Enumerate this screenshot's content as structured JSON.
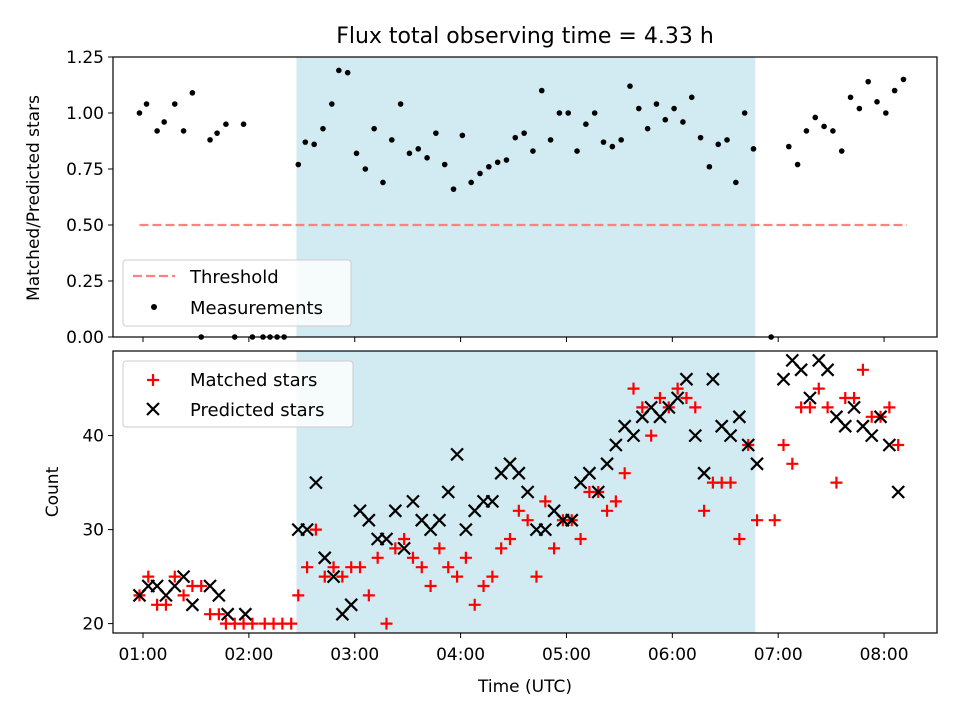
{
  "chart_data": [
    {
      "type": "scatter",
      "title": "Flux total observing time = 4.33 h",
      "xlabel": "",
      "ylabel": "Matched/Predicted stars",
      "ylim": [
        0,
        1.25
      ],
      "yticks": [
        "0.00",
        "0.25",
        "0.50",
        "0.75",
        "1.00",
        "1.25"
      ],
      "xlim": [
        "00:43",
        "08:30"
      ],
      "shaded_interval": [
        "02:27",
        "06:47"
      ],
      "shade_color": "#add8e6",
      "threshold": {
        "name": "Threshold",
        "value": 0.5,
        "x_range": [
          "00:58",
          "08:13"
        ],
        "color": "#ff8080"
      },
      "legend": {
        "position": "lower-left",
        "entries": [
          "Threshold",
          "Measurements"
        ]
      },
      "series": [
        {
          "name": "Measurements",
          "color": "#000000",
          "marker": "dot",
          "points": [
            [
              "00:58",
              1.0
            ],
            [
              "01:02",
              1.04
            ],
            [
              "01:08",
              0.92
            ],
            [
              "01:12",
              0.96
            ],
            [
              "01:18",
              1.04
            ],
            [
              "01:23",
              0.92
            ],
            [
              "01:28",
              1.09
            ],
            [
              "01:33",
              0.0
            ],
            [
              "01:38",
              0.88
            ],
            [
              "01:42",
              0.91
            ],
            [
              "01:47",
              0.95
            ],
            [
              "01:52",
              0.0
            ],
            [
              "01:57",
              0.95
            ],
            [
              "02:02",
              0.0
            ],
            [
              "02:08",
              0.0
            ],
            [
              "02:12",
              0.0
            ],
            [
              "02:16",
              0.0
            ],
            [
              "02:20",
              0.0
            ],
            [
              "02:28",
              0.77
            ],
            [
              "02:32",
              0.87
            ],
            [
              "02:37",
              0.86
            ],
            [
              "02:42",
              0.93
            ],
            [
              "02:47",
              1.04
            ],
            [
              "02:51",
              1.19
            ],
            [
              "02:56",
              1.18
            ],
            [
              "03:01",
              0.82
            ],
            [
              "03:06",
              0.75
            ],
            [
              "03:11",
              0.93
            ],
            [
              "03:16",
              0.69
            ],
            [
              "03:21",
              0.88
            ],
            [
              "03:26",
              1.04
            ],
            [
              "03:31",
              0.82
            ],
            [
              "03:36",
              0.84
            ],
            [
              "03:41",
              0.8
            ],
            [
              "03:46",
              0.91
            ],
            [
              "03:51",
              0.77
            ],
            [
              "03:56",
              0.66
            ],
            [
              "04:01",
              0.9
            ],
            [
              "04:06",
              0.69
            ],
            [
              "04:11",
              0.73
            ],
            [
              "04:16",
              0.76
            ],
            [
              "04:21",
              0.78
            ],
            [
              "04:26",
              0.79
            ],
            [
              "04:31",
              0.89
            ],
            [
              "04:36",
              0.91
            ],
            [
              "04:41",
              0.83
            ],
            [
              "04:46",
              1.1
            ],
            [
              "04:51",
              0.88
            ],
            [
              "04:56",
              1.0
            ],
            [
              "05:01",
              1.0
            ],
            [
              "05:06",
              0.83
            ],
            [
              "05:11",
              0.95
            ],
            [
              "05:16",
              1.0
            ],
            [
              "05:21",
              0.87
            ],
            [
              "05:26",
              0.85
            ],
            [
              "05:31",
              0.88
            ],
            [
              "05:36",
              1.12
            ],
            [
              "05:41",
              1.02
            ],
            [
              "05:46",
              0.93
            ],
            [
              "05:51",
              1.04
            ],
            [
              "05:56",
              0.97
            ],
            [
              "06:01",
              1.02
            ],
            [
              "06:06",
              0.96
            ],
            [
              "06:11",
              1.07
            ],
            [
              "06:16",
              0.89
            ],
            [
              "06:21",
              0.76
            ],
            [
              "06:26",
              0.86
            ],
            [
              "06:31",
              0.88
            ],
            [
              "06:36",
              0.69
            ],
            [
              "06:41",
              1.0
            ],
            [
              "06:46",
              0.84
            ],
            [
              "06:56",
              0.0
            ],
            [
              "07:06",
              0.85
            ],
            [
              "07:11",
              0.77
            ],
            [
              "07:16",
              0.92
            ],
            [
              "07:21",
              0.98
            ],
            [
              "07:26",
              0.94
            ],
            [
              "07:31",
              0.92
            ],
            [
              "07:36",
              0.83
            ],
            [
              "07:41",
              1.07
            ],
            [
              "07:46",
              1.02
            ],
            [
              "07:51",
              1.14
            ],
            [
              "07:56",
              1.05
            ],
            [
              "08:01",
              1.0
            ],
            [
              "08:06",
              1.1
            ],
            [
              "08:11",
              1.15
            ]
          ]
        }
      ]
    },
    {
      "type": "scatter",
      "title": "",
      "xlabel": "Time (UTC)",
      "ylabel": "Count",
      "ylim": [
        19,
        49
      ],
      "yticks": [
        "20",
        "30",
        "40"
      ],
      "xticks": [
        "01:00",
        "02:00",
        "03:00",
        "04:00",
        "05:00",
        "06:00",
        "07:00",
        "08:00"
      ],
      "xlim": [
        "00:43",
        "08:30"
      ],
      "shaded_interval": [
        "02:27",
        "06:47"
      ],
      "shade_color": "#add8e6",
      "legend": {
        "position": "upper-left",
        "entries": [
          "Matched stars",
          "Predicted stars"
        ]
      },
      "series": [
        {
          "name": "Matched stars",
          "color": "#ff0000",
          "marker": "plus",
          "points": [
            [
              "00:58",
              23
            ],
            [
              "01:03",
              25
            ],
            [
              "01:08",
              22
            ],
            [
              "01:13",
              22
            ],
            [
              "01:18",
              25
            ],
            [
              "01:23",
              23
            ],
            [
              "01:28",
              24
            ],
            [
              "01:33",
              24
            ],
            [
              "01:38",
              21
            ],
            [
              "01:43",
              21
            ],
            [
              "01:47",
              20
            ],
            [
              "01:52",
              20
            ],
            [
              "01:57",
              20
            ],
            [
              "02:02",
              20
            ],
            [
              "02:09",
              20
            ],
            [
              "02:14",
              20
            ],
            [
              "02:19",
              20
            ],
            [
              "02:24",
              20
            ],
            [
              "02:28",
              23
            ],
            [
              "02:33",
              26
            ],
            [
              "02:38",
              30
            ],
            [
              "02:43",
              25
            ],
            [
              "02:48",
              26
            ],
            [
              "02:53",
              25
            ],
            [
              "02:58",
              26
            ],
            [
              "03:03",
              26
            ],
            [
              "03:08",
              23
            ],
            [
              "03:13",
              27
            ],
            [
              "03:18",
              20
            ],
            [
              "03:23",
              28
            ],
            [
              "03:28",
              29
            ],
            [
              "03:33",
              27
            ],
            [
              "03:38",
              26
            ],
            [
              "03:43",
              24
            ],
            [
              "03:48",
              28
            ],
            [
              "03:53",
              26
            ],
            [
              "03:58",
              25
            ],
            [
              "04:03",
              27
            ],
            [
              "04:08",
              22
            ],
            [
              "04:13",
              24
            ],
            [
              "04:18",
              25
            ],
            [
              "04:23",
              28
            ],
            [
              "04:28",
              29
            ],
            [
              "04:33",
              32
            ],
            [
              "04:38",
              31
            ],
            [
              "04:43",
              25
            ],
            [
              "04:48",
              33
            ],
            [
              "04:53",
              28
            ],
            [
              "04:58",
              31
            ],
            [
              "05:03",
              31
            ],
            [
              "05:08",
              29
            ],
            [
              "05:13",
              34
            ],
            [
              "05:18",
              34
            ],
            [
              "05:23",
              32
            ],
            [
              "05:28",
              33
            ],
            [
              "05:33",
              36
            ],
            [
              "05:38",
              45
            ],
            [
              "05:43",
              43
            ],
            [
              "05:48",
              40
            ],
            [
              "05:53",
              44
            ],
            [
              "05:58",
              43
            ],
            [
              "06:03",
              45
            ],
            [
              "06:08",
              44
            ],
            [
              "06:13",
              43
            ],
            [
              "06:18",
              32
            ],
            [
              "06:23",
              35
            ],
            [
              "06:28",
              35
            ],
            [
              "06:33",
              35
            ],
            [
              "06:38",
              29
            ],
            [
              "06:43",
              39
            ],
            [
              "06:48",
              31
            ],
            [
              "06:58",
              31
            ],
            [
              "07:03",
              39
            ],
            [
              "07:08",
              37
            ],
            [
              "07:13",
              43
            ],
            [
              "07:18",
              43
            ],
            [
              "07:23",
              45
            ],
            [
              "07:28",
              43
            ],
            [
              "07:33",
              35
            ],
            [
              "07:38",
              44
            ],
            [
              "07:43",
              44
            ],
            [
              "07:48",
              47
            ],
            [
              "07:53",
              42
            ],
            [
              "07:58",
              42
            ],
            [
              "08:03",
              43
            ],
            [
              "08:08",
              39
            ]
          ]
        },
        {
          "name": "Predicted stars",
          "color": "#000000",
          "marker": "x",
          "points": [
            [
              "00:58",
              23
            ],
            [
              "01:03",
              24
            ],
            [
              "01:08",
              24
            ],
            [
              "01:13",
              23
            ],
            [
              "01:18",
              24
            ],
            [
              "01:23",
              25
            ],
            [
              "01:28",
              22
            ],
            [
              "01:38",
              24
            ],
            [
              "01:43",
              23
            ],
            [
              "01:48",
              21
            ],
            [
              "01:58",
              21
            ],
            [
              "02:28",
              30
            ],
            [
              "02:33",
              30
            ],
            [
              "02:38",
              35
            ],
            [
              "02:43",
              27
            ],
            [
              "02:48",
              25
            ],
            [
              "02:53",
              21
            ],
            [
              "02:58",
              22
            ],
            [
              "03:03",
              32
            ],
            [
              "03:08",
              31
            ],
            [
              "03:13",
              29
            ],
            [
              "03:18",
              29
            ],
            [
              "03:23",
              32
            ],
            [
              "03:28",
              28
            ],
            [
              "03:33",
              33
            ],
            [
              "03:38",
              31
            ],
            [
              "03:43",
              30
            ],
            [
              "03:48",
              31
            ],
            [
              "03:53",
              34
            ],
            [
              "03:58",
              38
            ],
            [
              "04:03",
              30
            ],
            [
              "04:08",
              32
            ],
            [
              "04:13",
              33
            ],
            [
              "04:18",
              33
            ],
            [
              "04:23",
              36
            ],
            [
              "04:28",
              37
            ],
            [
              "04:33",
              36
            ],
            [
              "04:38",
              34
            ],
            [
              "04:43",
              30
            ],
            [
              "04:48",
              30
            ],
            [
              "04:53",
              32
            ],
            [
              "04:58",
              31
            ],
            [
              "05:03",
              31
            ],
            [
              "05:08",
              35
            ],
            [
              "05:13",
              36
            ],
            [
              "05:18",
              34
            ],
            [
              "05:23",
              37
            ],
            [
              "05:28",
              39
            ],
            [
              "05:33",
              41
            ],
            [
              "05:38",
              40
            ],
            [
              "05:43",
              42
            ],
            [
              "05:48",
              43
            ],
            [
              "05:53",
              42
            ],
            [
              "05:58",
              43
            ],
            [
              "06:03",
              44
            ],
            [
              "06:08",
              46
            ],
            [
              "06:13",
              40
            ],
            [
              "06:18",
              36
            ],
            [
              "06:23",
              46
            ],
            [
              "06:28",
              41
            ],
            [
              "06:33",
              40
            ],
            [
              "06:38",
              42
            ],
            [
              "06:43",
              39
            ],
            [
              "06:48",
              37
            ],
            [
              "07:03",
              46
            ],
            [
              "07:08",
              48
            ],
            [
              "07:13",
              47
            ],
            [
              "07:18",
              44
            ],
            [
              "07:23",
              48
            ],
            [
              "07:28",
              47
            ],
            [
              "07:33",
              42
            ],
            [
              "07:38",
              41
            ],
            [
              "07:43",
              43
            ],
            [
              "07:48",
              41
            ],
            [
              "07:53",
              40
            ],
            [
              "07:58",
              42
            ],
            [
              "08:03",
              39
            ],
            [
              "08:08",
              34
            ]
          ]
        }
      ]
    }
  ]
}
